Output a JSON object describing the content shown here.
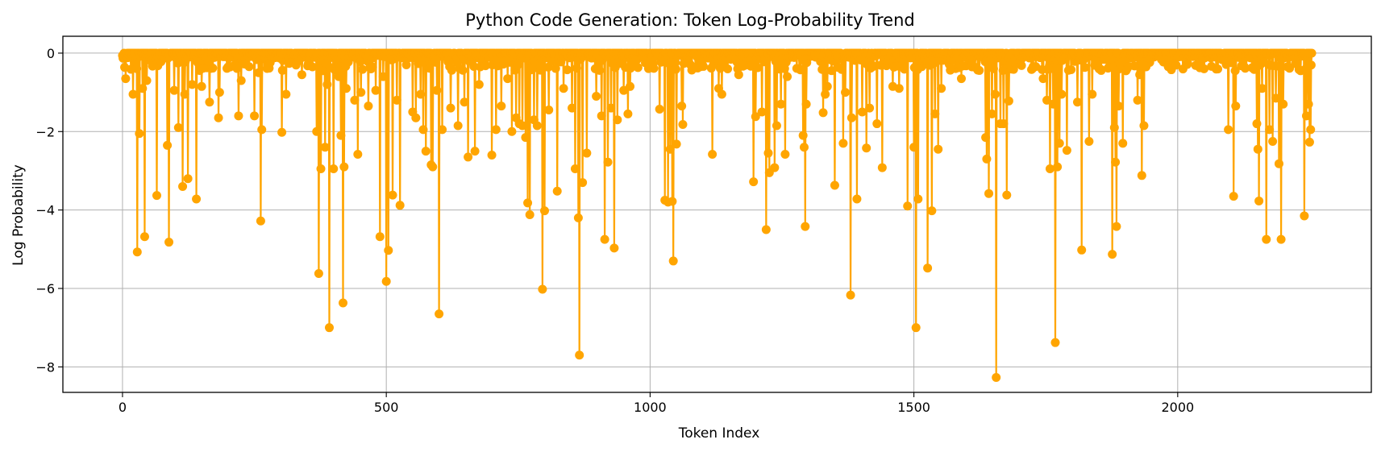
{
  "chart_data": {
    "type": "line",
    "title": "Python Code Generation: Token Log-Probability Trend",
    "xlabel": "Token Index",
    "ylabel": "Log Probability",
    "xlim": [
      -113,
      2367
    ],
    "ylim": [
      -8.65,
      0.43
    ],
    "xticks": [
      0,
      500,
      1000,
      1500,
      2000
    ],
    "yticks": [
      0,
      -2,
      -4,
      -6,
      -8
    ],
    "grid": true,
    "legend": "none",
    "series_color": "#FFA500",
    "markers": "circle",
    "n_points": 2255,
    "dips": [
      [
        6,
        -0.65
      ],
      [
        20,
        -1.05
      ],
      [
        28,
        -5.07
      ],
      [
        32,
        -2.05
      ],
      [
        38,
        -0.9
      ],
      [
        42,
        -4.68
      ],
      [
        46,
        -0.7
      ],
      [
        65,
        -3.63
      ],
      [
        85,
        -2.35
      ],
      [
        88,
        -4.82
      ],
      [
        98,
        -0.95
      ],
      [
        106,
        -1.9
      ],
      [
        114,
        -3.4
      ],
      [
        118,
        -1.05
      ],
      [
        124,
        -3.2
      ],
      [
        132,
        -0.8
      ],
      [
        140,
        -3.72
      ],
      [
        150,
        -0.85
      ],
      [
        165,
        -1.25
      ],
      [
        182,
        -1.65
      ],
      [
        184,
        -1.0
      ],
      [
        200,
        -0.35
      ],
      [
        220,
        -1.6
      ],
      [
        225,
        -0.7
      ],
      [
        250,
        -1.6
      ],
      [
        258,
        -0.5
      ],
      [
        262,
        -4.28
      ],
      [
        264,
        -1.95
      ],
      [
        275,
        -0.3
      ],
      [
        302,
        -2.02
      ],
      [
        310,
        -1.05
      ],
      [
        340,
        -0.55
      ],
      [
        360,
        -0.35
      ],
      [
        368,
        -2.0
      ],
      [
        372,
        -5.62
      ],
      [
        376,
        -2.95
      ],
      [
        384,
        -2.4
      ],
      [
        388,
        -0.8
      ],
      [
        392,
        -7.0
      ],
      [
        400,
        -2.95
      ],
      [
        410,
        -0.6
      ],
      [
        414,
        -2.1
      ],
      [
        418,
        -6.37
      ],
      [
        420,
        -2.9
      ],
      [
        424,
        -0.9
      ],
      [
        440,
        -1.2
      ],
      [
        446,
        -2.58
      ],
      [
        452,
        -1.0
      ],
      [
        466,
        -1.35
      ],
      [
        480,
        -0.95
      ],
      [
        488,
        -4.68
      ],
      [
        494,
        -0.6
      ],
      [
        500,
        -5.82
      ],
      [
        504,
        -5.03
      ],
      [
        512,
        -3.62
      ],
      [
        520,
        -1.2
      ],
      [
        526,
        -3.88
      ],
      [
        538,
        -0.3
      ],
      [
        550,
        -1.5
      ],
      [
        556,
        -1.65
      ],
      [
        565,
        -1.05
      ],
      [
        570,
        -1.95
      ],
      [
        575,
        -2.5
      ],
      [
        585,
        -2.85
      ],
      [
        588,
        -2.9
      ],
      [
        596,
        -0.95
      ],
      [
        600,
        -6.65
      ],
      [
        606,
        -1.95
      ],
      [
        622,
        -1.4
      ],
      [
        636,
        -1.85
      ],
      [
        648,
        -1.25
      ],
      [
        655,
        -2.65
      ],
      [
        668,
        -2.5
      ],
      [
        676,
        -0.8
      ],
      [
        700,
        -2.6
      ],
      [
        708,
        -1.95
      ],
      [
        718,
        -1.35
      ],
      [
        730,
        -0.65
      ],
      [
        738,
        -2.0
      ],
      [
        746,
        -1.65
      ],
      [
        752,
        -1.8
      ],
      [
        758,
        -1.85
      ],
      [
        764,
        -2.15
      ],
      [
        768,
        -3.82
      ],
      [
        772,
        -4.12
      ],
      [
        780,
        -1.7
      ],
      [
        786,
        -1.85
      ],
      [
        796,
        -6.02
      ],
      [
        800,
        -4.02
      ],
      [
        808,
        -1.45
      ],
      [
        824,
        -3.52
      ],
      [
        836,
        -0.9
      ],
      [
        852,
        -1.4
      ],
      [
        858,
        -2.95
      ],
      [
        864,
        -4.2
      ],
      [
        866,
        -7.7
      ],
      [
        872,
        -3.3
      ],
      [
        880,
        -2.55
      ],
      [
        898,
        -1.1
      ],
      [
        908,
        -1.6
      ],
      [
        914,
        -4.75
      ],
      [
        920,
        -2.78
      ],
      [
        926,
        -1.4
      ],
      [
        932,
        -4.97
      ],
      [
        938,
        -1.7
      ],
      [
        950,
        -0.95
      ],
      [
        958,
        -1.55
      ],
      [
        962,
        -0.85
      ],
      [
        1018,
        -1.43
      ],
      [
        1028,
        -3.75
      ],
      [
        1034,
        -3.8
      ],
      [
        1038,
        -2.45
      ],
      [
        1042,
        -3.78
      ],
      [
        1044,
        -5.3
      ],
      [
        1050,
        -2.32
      ],
      [
        1060,
        -1.35
      ],
      [
        1062,
        -1.82
      ],
      [
        1118,
        -2.58
      ],
      [
        1130,
        -0.9
      ],
      [
        1136,
        -1.05
      ],
      [
        1168,
        -0.55
      ],
      [
        1196,
        -3.28
      ],
      [
        1200,
        -1.62
      ],
      [
        1212,
        -1.5
      ],
      [
        1220,
        -4.5
      ],
      [
        1224,
        -2.55
      ],
      [
        1226,
        -3.05
      ],
      [
        1236,
        -2.92
      ],
      [
        1240,
        -1.85
      ],
      [
        1248,
        -1.3
      ],
      [
        1256,
        -2.58
      ],
      [
        1260,
        -0.6
      ],
      [
        1290,
        -2.1
      ],
      [
        1292,
        -2.4
      ],
      [
        1294,
        -4.42
      ],
      [
        1296,
        -1.3
      ],
      [
        1328,
        -1.52
      ],
      [
        1332,
        -1.05
      ],
      [
        1336,
        -0.85
      ],
      [
        1350,
        -3.37
      ],
      [
        1366,
        -2.3
      ],
      [
        1370,
        -1.0
      ],
      [
        1380,
        -6.17
      ],
      [
        1382,
        -1.65
      ],
      [
        1392,
        -3.72
      ],
      [
        1402,
        -1.5
      ],
      [
        1410,
        -2.42
      ],
      [
        1416,
        -1.4
      ],
      [
        1430,
        -1.8
      ],
      [
        1440,
        -2.92
      ],
      [
        1460,
        -0.85
      ],
      [
        1472,
        -0.9
      ],
      [
        1488,
        -3.9
      ],
      [
        1500,
        -2.4
      ],
      [
        1504,
        -7.0
      ],
      [
        1508,
        -3.72
      ],
      [
        1526,
        -5.48
      ],
      [
        1534,
        -4.02
      ],
      [
        1540,
        -1.55
      ],
      [
        1546,
        -2.45
      ],
      [
        1552,
        -0.9
      ],
      [
        1590,
        -0.65
      ],
      [
        1610,
        -0.35
      ],
      [
        1636,
        -2.15
      ],
      [
        1638,
        -2.7
      ],
      [
        1642,
        -3.58
      ],
      [
        1648,
        -1.55
      ],
      [
        1654,
        -1.05
      ],
      [
        1656,
        -8.27
      ],
      [
        1664,
        -1.8
      ],
      [
        1670,
        -1.8
      ],
      [
        1676,
        -3.62
      ],
      [
        1680,
        -1.22
      ],
      [
        1745,
        -0.65
      ],
      [
        1752,
        -1.2
      ],
      [
        1758,
        -2.95
      ],
      [
        1764,
        -1.3
      ],
      [
        1768,
        -7.38
      ],
      [
        1772,
        -2.9
      ],
      [
        1776,
        -2.3
      ],
      [
        1780,
        -1.05
      ],
      [
        1790,
        -2.48
      ],
      [
        1810,
        -1.25
      ],
      [
        1818,
        -5.02
      ],
      [
        1832,
        -2.25
      ],
      [
        1838,
        -1.05
      ],
      [
        1876,
        -5.13
      ],
      [
        1880,
        -1.9
      ],
      [
        1882,
        -2.78
      ],
      [
        1884,
        -4.42
      ],
      [
        1888,
        -1.35
      ],
      [
        1896,
        -2.3
      ],
      [
        1924,
        -1.2
      ],
      [
        1928,
        -0.55
      ],
      [
        1932,
        -3.12
      ],
      [
        1936,
        -1.85
      ],
      [
        1940,
        -0.35
      ],
      [
        1990,
        -0.35
      ],
      [
        2050,
        -0.4
      ],
      [
        2096,
        -1.95
      ],
      [
        2106,
        -3.65
      ],
      [
        2110,
        -1.35
      ],
      [
        2150,
        -1.8
      ],
      [
        2152,
        -2.45
      ],
      [
        2154,
        -3.77
      ],
      [
        2160,
        -0.9
      ],
      [
        2168,
        -4.75
      ],
      [
        2174,
        -1.95
      ],
      [
        2180,
        -2.25
      ],
      [
        2186,
        -1.15
      ],
      [
        2192,
        -2.82
      ],
      [
        2196,
        -4.75
      ],
      [
        2200,
        -1.3
      ],
      [
        2240,
        -4.15
      ],
      [
        2244,
        -1.6
      ],
      [
        2248,
        -1.3
      ],
      [
        2250,
        -2.27
      ],
      [
        2252,
        -1.95
      ]
    ]
  }
}
